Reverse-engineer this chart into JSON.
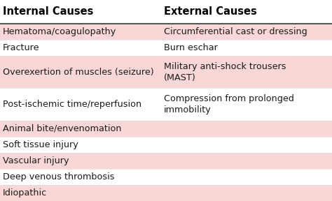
{
  "col1_header": "Internal Causes",
  "col2_header": "External Causes",
  "rows": [
    {
      "left": "Hematoma/coagulopathy",
      "right": "Circumferential cast or dressing",
      "bg": "#fad7d7"
    },
    {
      "left": "Fracture",
      "right": "Burn eschar",
      "bg": "#ffffff"
    },
    {
      "left": "Overexertion of muscles (seizure)",
      "right": "Military anti-shock trousers\n(MAST)",
      "bg": "#fad7d7"
    },
    {
      "left": "Post-ischemic time/reperfusion",
      "right": "Compression from prolonged\nimmobility",
      "bg": "#ffffff"
    },
    {
      "left": "Animal bite/envenomation",
      "right": "",
      "bg": "#fad7d7"
    },
    {
      "left": "Soft tissue injury",
      "right": "",
      "bg": "#ffffff"
    },
    {
      "left": "Vascular injury",
      "right": "",
      "bg": "#fad7d7"
    },
    {
      "left": "Deep venous thrombosis",
      "right": "",
      "bg": "#ffffff"
    },
    {
      "left": "Idiopathic",
      "right": "",
      "bg": "#fad7d7"
    }
  ],
  "header_bg": "#ffffff",
  "header_text_color": "#000000",
  "text_color": "#1a1a1a",
  "font_size": 9.2,
  "header_font_size": 10.5,
  "col_split": 0.485,
  "figsize": [
    4.74,
    2.88
  ],
  "dpi": 100
}
